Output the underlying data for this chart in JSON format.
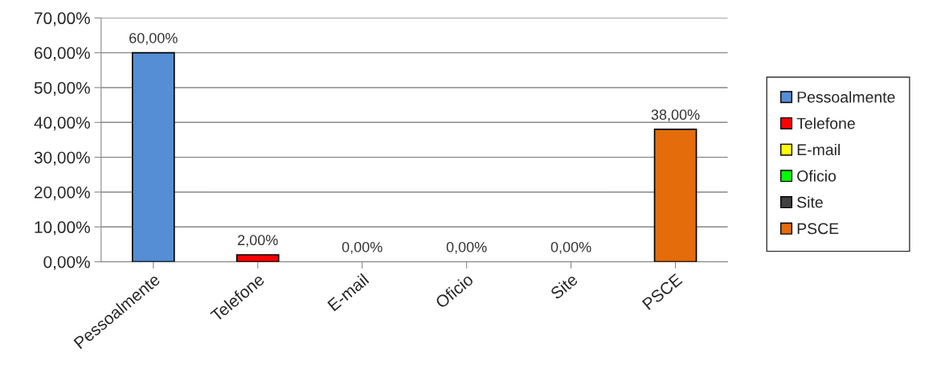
{
  "chart_data": {
    "type": "bar",
    "categories": [
      "Pessoalmente",
      "Telefone",
      "E-mail",
      "Oficio",
      "Site",
      "PSCE"
    ],
    "series": [
      {
        "name": "Pessoalmente",
        "color": "#558ed5",
        "values": [
          60,
          null,
          null,
          null,
          null,
          null
        ],
        "value_labels": [
          "60,00%",
          null,
          null,
          null,
          null,
          null
        ]
      },
      {
        "name": "Telefone",
        "color": "#ff0000",
        "values": [
          null,
          2,
          null,
          null,
          null,
          null
        ],
        "value_labels": [
          null,
          "2,00%",
          null,
          null,
          null,
          null
        ]
      },
      {
        "name": "E-mail",
        "color": "#ffff00",
        "values": [
          null,
          null,
          0,
          null,
          null,
          null
        ],
        "value_labels": [
          null,
          null,
          "0,00%",
          null,
          null,
          null
        ]
      },
      {
        "name": "Oficio",
        "color": "#00ff00",
        "values": [
          null,
          null,
          null,
          0,
          null,
          null
        ],
        "value_labels": [
          null,
          null,
          null,
          "0,00%",
          null,
          null
        ]
      },
      {
        "name": "Site",
        "color": "#404040",
        "values": [
          null,
          null,
          null,
          null,
          0,
          null
        ],
        "value_labels": [
          null,
          null,
          null,
          null,
          "0,00%",
          null
        ]
      },
      {
        "name": "PSCE",
        "color": "#e46c0a",
        "values": [
          null,
          null,
          null,
          null,
          null,
          38
        ],
        "value_labels": [
          null,
          null,
          null,
          null,
          null,
          "38,00%"
        ]
      }
    ],
    "stacked": true,
    "ylim": [
      0,
      70
    ],
    "yticks": [
      {
        "value": 0,
        "label": "0,00%"
      },
      {
        "value": 10,
        "label": "10,00%"
      },
      {
        "value": 20,
        "label": "20,00%"
      },
      {
        "value": 30,
        "label": "30,00%"
      },
      {
        "value": 40,
        "label": "40,00%"
      },
      {
        "value": 50,
        "label": "50,00%"
      },
      {
        "value": 60,
        "label": "60,00%"
      },
      {
        "value": 70,
        "label": "70,00%"
      }
    ],
    "grid": "y",
    "legend": "right"
  }
}
